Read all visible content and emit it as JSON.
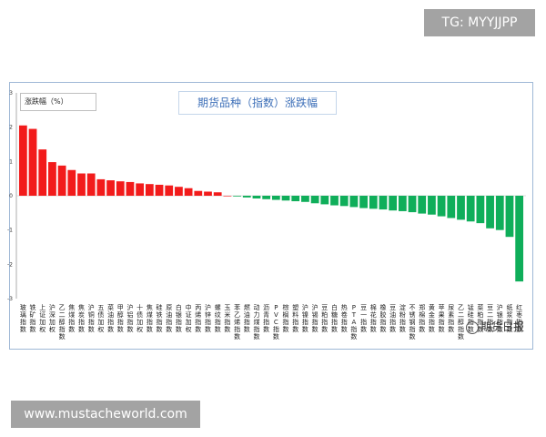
{
  "chart_data": {
    "type": "bar",
    "title": "期货品种（指数）涨跌幅",
    "legend": "涨跌幅（%）",
    "ylim": [
      -3,
      3
    ],
    "yticks": [
      3,
      2,
      1,
      0,
      -1,
      -2,
      -3
    ],
    "categories": [
      "玻璃指数",
      "铁矿指数",
      "上证加权",
      "沪深加权",
      "乙二醇指数",
      "焦煤指数",
      "焦炭指数",
      "沪铜指数",
      "五债加权",
      "菜油指数",
      "甲醇指数",
      "沪铝指数",
      "十债加权",
      "焦煤指数",
      "硅铁指数",
      "原油指数",
      "白银指数",
      "中证加权",
      "丙烯指数",
      "沪锌指数",
      "螺纹指数",
      "玉米指数",
      "苯乙烯指数",
      "燃油指数",
      "动力煤指数",
      "沥青指数",
      "PVC指数",
      "棕榈指数",
      "塑料指数",
      "沪镍指数",
      "沪锡指数",
      "豆粕指数",
      "白糖指数",
      "热卷指数",
      "PTA指数",
      "豆一指数",
      "棉花指数",
      "橡胶指数",
      "豆油指数",
      "淀粉指数",
      "不锈钢指数",
      "郑棉指数",
      "黄金指数",
      "苹果指数",
      "尿素指数",
      "乙二醇指数",
      "锰硅指数",
      "菜粕指数",
      "豆二指数",
      "沪银指数",
      "纸浆指数",
      "红枣指数"
    ],
    "values": [
      2.05,
      1.95,
      1.35,
      0.98,
      0.88,
      0.75,
      0.65,
      0.65,
      0.48,
      0.45,
      0.42,
      0.4,
      0.36,
      0.34,
      0.32,
      0.3,
      0.26,
      0.22,
      0.14,
      0.12,
      0.1,
      0.0,
      -0.02,
      -0.05,
      -0.08,
      -0.1,
      -0.12,
      -0.14,
      -0.16,
      -0.18,
      -0.22,
      -0.25,
      -0.28,
      -0.3,
      -0.33,
      -0.36,
      -0.38,
      -0.4,
      -0.43,
      -0.45,
      -0.48,
      -0.52,
      -0.55,
      -0.6,
      -0.65,
      -0.7,
      -0.75,
      -0.8,
      -0.95,
      -1.0,
      -1.2,
      -2.5
    ],
    "colors": {
      "positive": "#f21b1b",
      "negative": "#0fae5a"
    }
  },
  "watermarks": {
    "top_right": "TG: MYYJJPP",
    "bottom_left": "www.mustacheworld.com",
    "source": "期货日报"
  }
}
